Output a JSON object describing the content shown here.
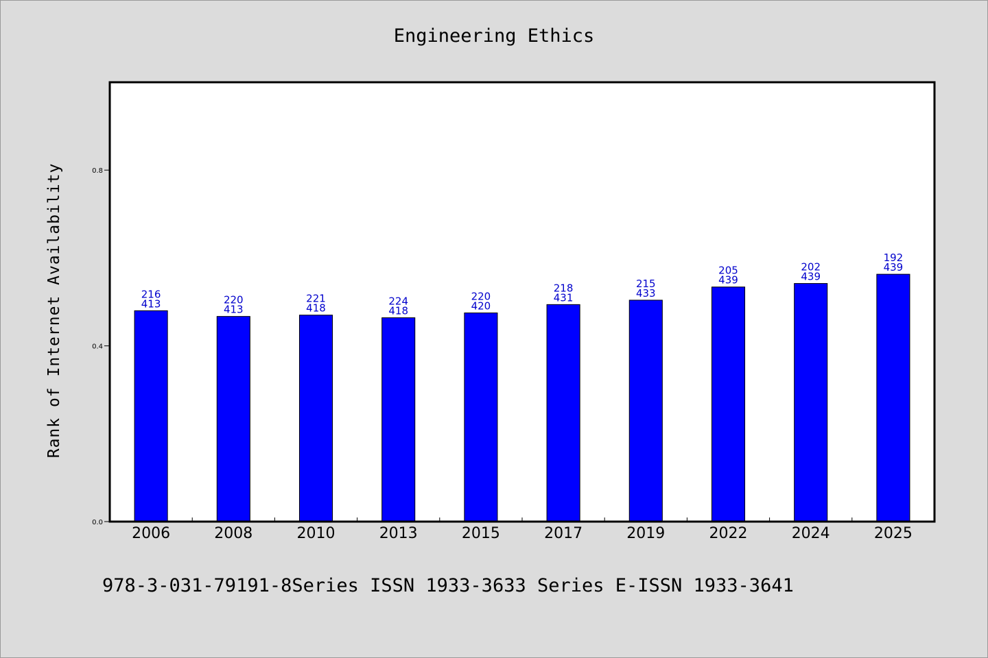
{
  "chart_data": {
    "type": "bar",
    "title": "Engineering Ethics",
    "xlabel": "",
    "ylabel": "Rank of Internet Availability",
    "categories": [
      "2006",
      "2008",
      "2010",
      "2013",
      "2015",
      "2017",
      "2019",
      "2022",
      "2024",
      "2025"
    ],
    "values": [
      0.48,
      0.467,
      0.47,
      0.464,
      0.475,
      0.494,
      0.504,
      0.534,
      0.542,
      0.563
    ],
    "data_labels": [
      [
        "216",
        "413"
      ],
      [
        "220",
        "413"
      ],
      [
        "221",
        "418"
      ],
      [
        "224",
        "418"
      ],
      [
        "220",
        "420"
      ],
      [
        "218",
        "431"
      ],
      [
        "215",
        "433"
      ],
      [
        "205",
        "439"
      ],
      [
        "202",
        "439"
      ],
      [
        "192",
        "439"
      ]
    ],
    "ylim": [
      0,
      1.0
    ],
    "yticks": [
      0.0,
      0.4,
      0.8
    ],
    "ytick_labels": [
      "0.0",
      "0.4",
      "0.8"
    ],
    "grid": false,
    "legend": "none",
    "bar_color": "#0000ff",
    "label_color": "#0000cc",
    "footer_text": "978-3-031-79191-8Series ISSN 1933-3633 Series E-ISSN 1933-3641"
  }
}
